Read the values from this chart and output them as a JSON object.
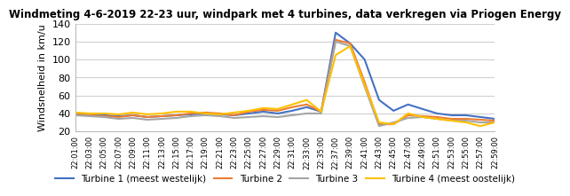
{
  "title": "Windmeting 4-6-2019 22-23 uur, windpark met 4 turbines, data verkregen via Priogen Energy",
  "ylabel": "Windsnelheid in km/u",
  "ylim": [
    20,
    140
  ],
  "yticks": [
    20,
    40,
    60,
    80,
    100,
    120,
    140
  ],
  "colors": {
    "T1": "#4472C4",
    "T2": "#ED7D31",
    "T3": "#A5A5A5",
    "T4": "#FFC000"
  },
  "legend_labels": [
    "Turbine 1 (meest westelijk)",
    "Turbine 2",
    "Turbine 3",
    "Turbine 4 (meest oostelijk)"
  ],
  "time_labels": [
    "22:01:00",
    "22:03:00",
    "22:05:00",
    "22:07:00",
    "22:09:00",
    "22:11:00",
    "22:13:00",
    "22:15:00",
    "22:17:00",
    "22:19:00",
    "22:21:00",
    "22:23:00",
    "22:25:00",
    "22:27:00",
    "22:29:00",
    "22:31:00",
    "22:33:00",
    "22:35:00",
    "22:37:00",
    "22:39:00",
    "22:41:00",
    "22:43:00",
    "22:45:00",
    "22:47:00",
    "22:49:00",
    "22:51:00",
    "22:53:00",
    "22:55:00",
    "22:57:00",
    "22:59:00"
  ],
  "T1": [
    40,
    38,
    38,
    37,
    38,
    36,
    37,
    38,
    39,
    40,
    39,
    38,
    40,
    42,
    40,
    43,
    47,
    42,
    130,
    118,
    100,
    55,
    43,
    50,
    45,
    40,
    38,
    38,
    36,
    34
  ],
  "T2": [
    39,
    38,
    37,
    36,
    38,
    36,
    37,
    38,
    40,
    41,
    40,
    38,
    42,
    44,
    43,
    47,
    50,
    42,
    122,
    118,
    75,
    28,
    28,
    38,
    37,
    36,
    34,
    34,
    33,
    32
  ],
  "T3": [
    38,
    37,
    36,
    34,
    35,
    33,
    34,
    35,
    37,
    38,
    37,
    35,
    36,
    37,
    36,
    38,
    40,
    40,
    120,
    115,
    70,
    26,
    30,
    35,
    36,
    34,
    32,
    32,
    30,
    30
  ],
  "T4": [
    41,
    40,
    40,
    39,
    41,
    39,
    40,
    42,
    42,
    40,
    39,
    41,
    43,
    46,
    45,
    50,
    55,
    42,
    105,
    115,
    72,
    30,
    28,
    40,
    36,
    34,
    32,
    30,
    26,
    30
  ]
}
